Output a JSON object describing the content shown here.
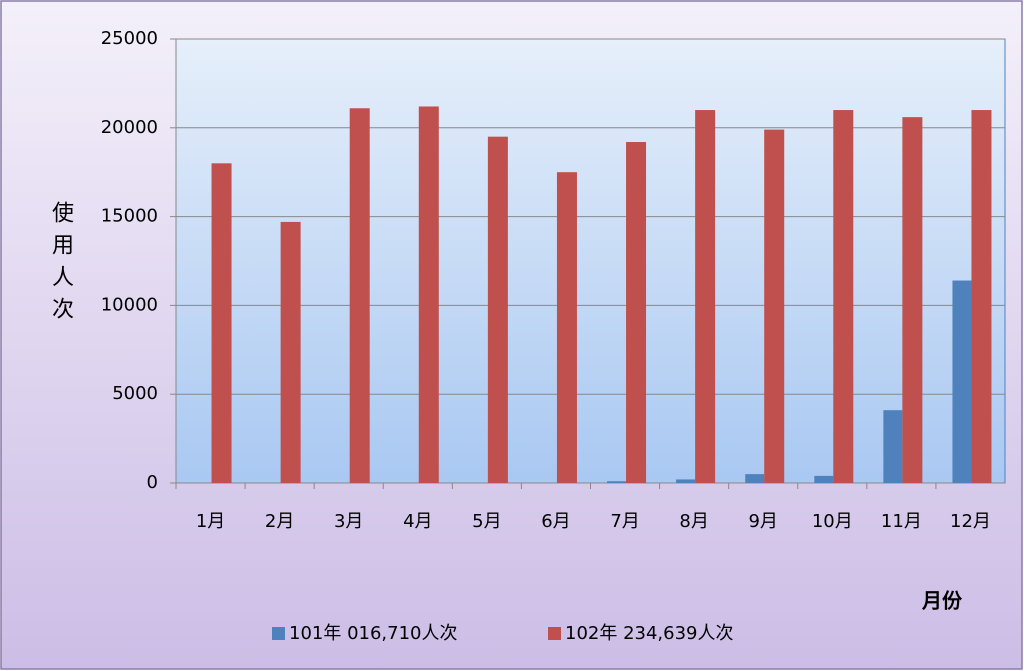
{
  "chart_data": {
    "type": "bar",
    "y_label": "使用人次",
    "x_label": "月份",
    "categories": [
      "1月",
      "2月",
      "3月",
      "4月",
      "5月",
      "6月",
      "7月",
      "8月",
      "9月",
      "10月",
      "11月",
      "12月"
    ],
    "series": [
      {
        "name": "101年 016,710人次",
        "color": "#4f81bd",
        "values": [
          0,
          0,
          0,
          0,
          0,
          0,
          100,
          200,
          500,
          400,
          4100,
          11400
        ]
      },
      {
        "name": "102年 234,639人次",
        "color": "#c0504d",
        "values": [
          18000,
          14700,
          21100,
          21200,
          19500,
          17500,
          19200,
          21000,
          19900,
          21000,
          20600,
          21000
        ]
      }
    ],
    "ylim": [
      0,
      25000
    ],
    "yticks": [
      0,
      5000,
      10000,
      15000,
      20000,
      25000
    ],
    "grid": true,
    "legend": "bottom"
  }
}
